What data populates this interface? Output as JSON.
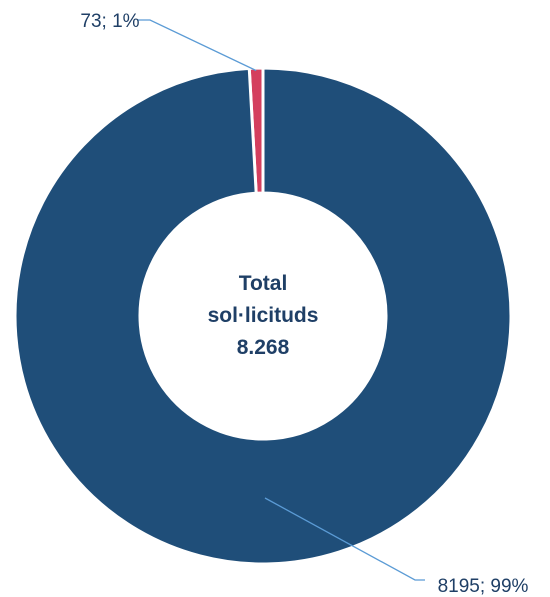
{
  "chart_data": {
    "type": "pie",
    "donut": true,
    "center_label": [
      "Total",
      "sol·licituds",
      "8.268"
    ],
    "slices": [
      {
        "value": 73,
        "percent": 1,
        "label": "73; 1%",
        "color": "#d43f5e"
      },
      {
        "value": 8195,
        "percent": 99,
        "label": "8195; 99%",
        "color": "#1f4e79"
      }
    ],
    "legend": "none"
  }
}
